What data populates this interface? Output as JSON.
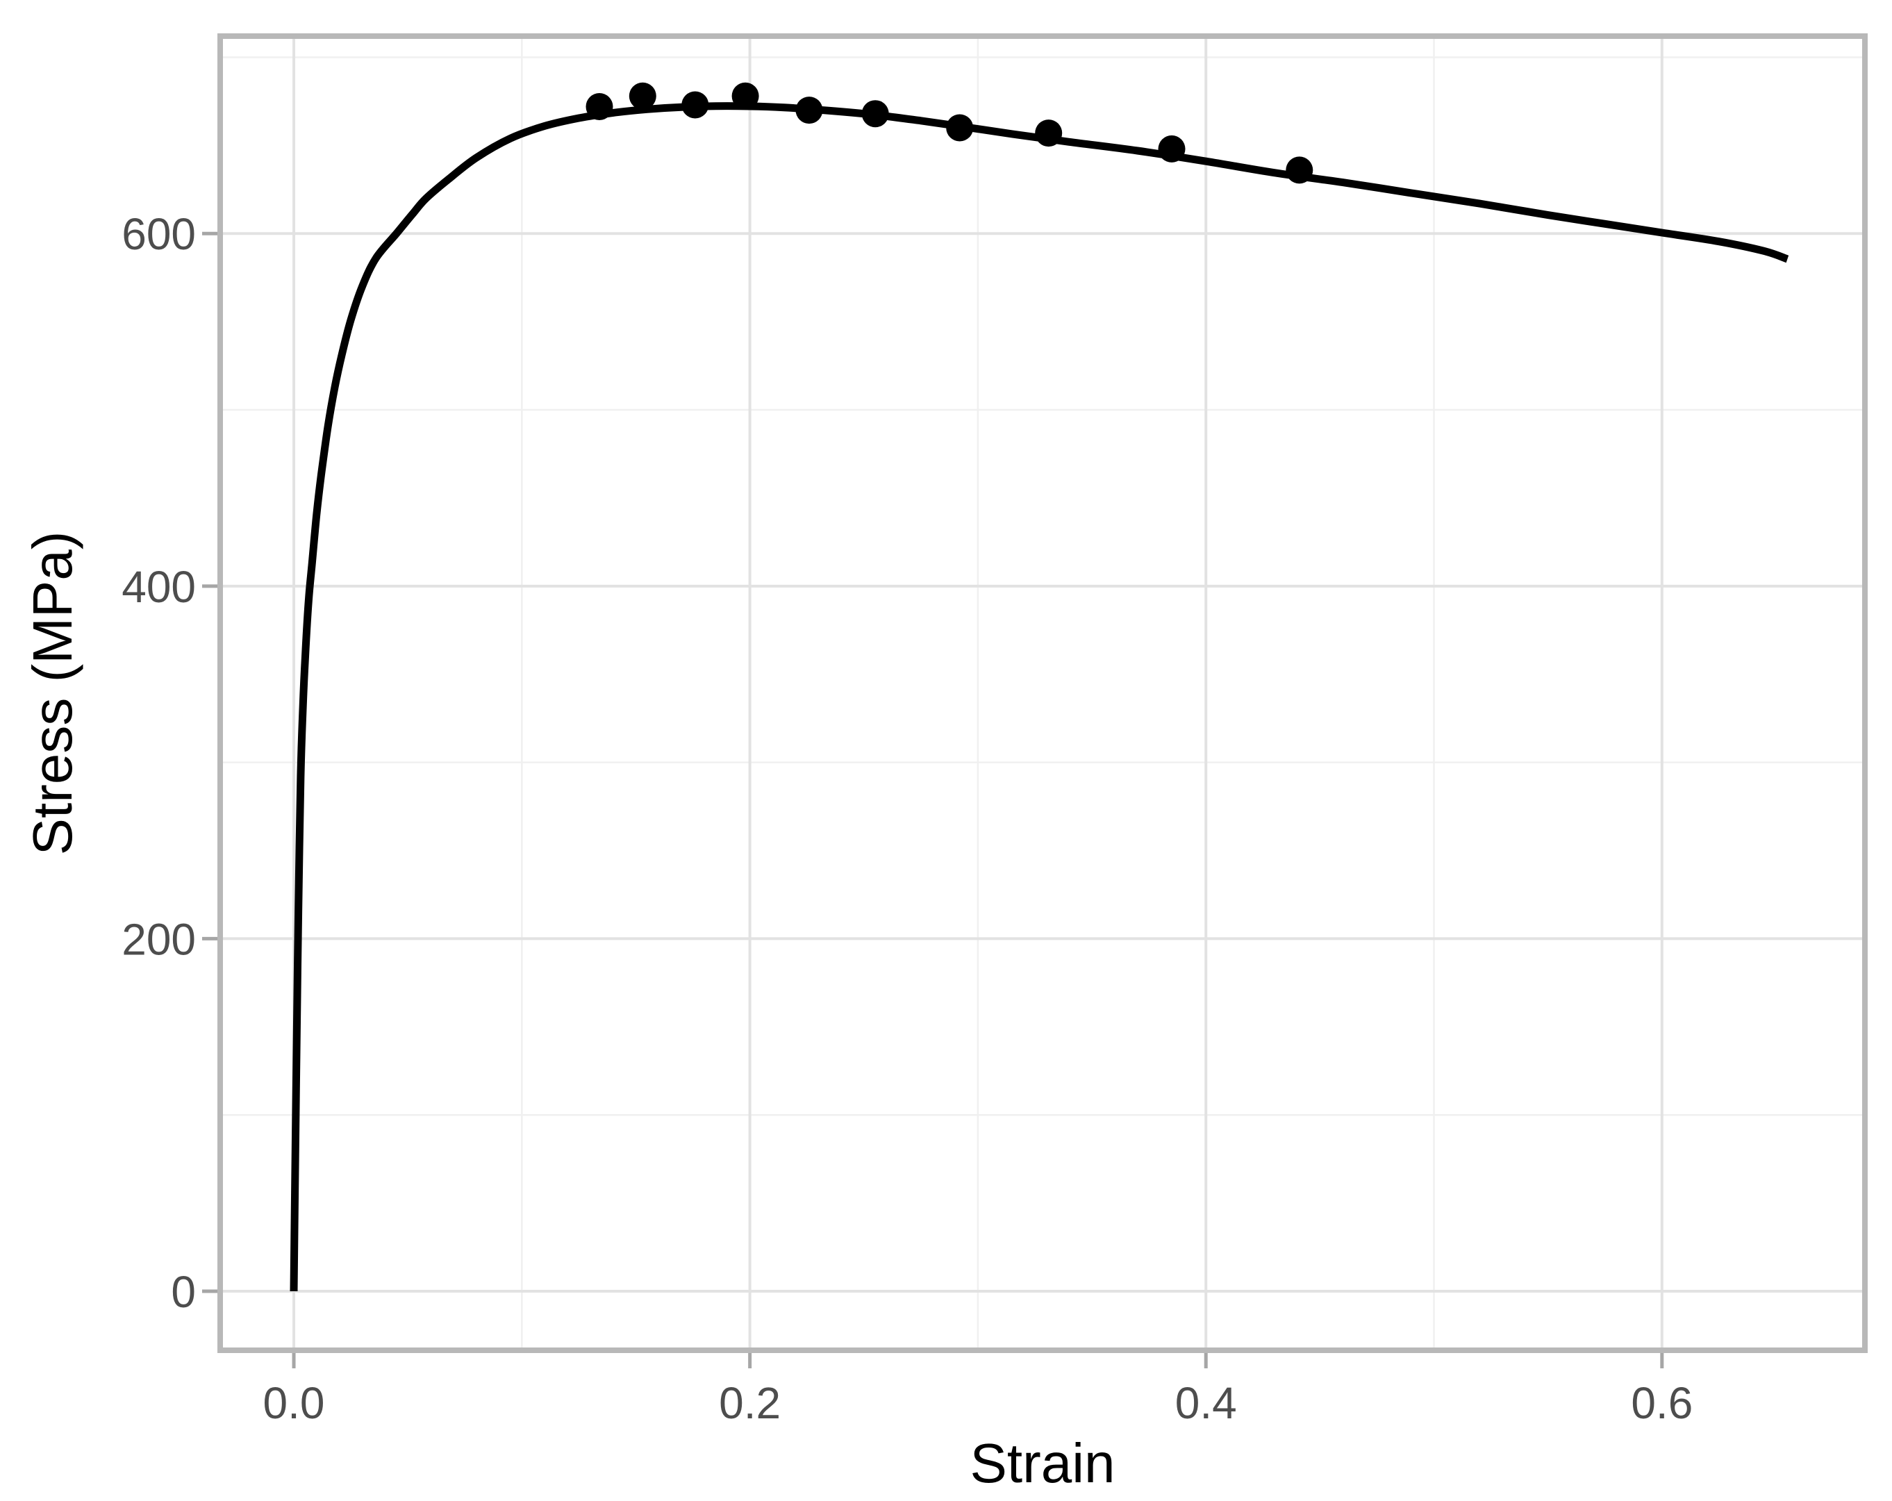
{
  "chart_data": {
    "type": "line",
    "title": "",
    "xlabel": "Strain",
    "ylabel": "Stress (MPa)",
    "xlim": [
      -0.0323,
      0.689
    ],
    "ylim": [
      -33.5,
      712
    ],
    "grid": "on",
    "legend": "none",
    "x_axis": {
      "major_ticks": [
        0.0,
        0.2,
        0.4,
        0.6
      ],
      "tick_labels": [
        "0.0",
        "0.2",
        "0.4",
        "0.6"
      ],
      "minor_gridlines": [
        0.1,
        0.3,
        0.5
      ]
    },
    "y_axis": {
      "major_ticks": [
        0,
        200,
        400,
        600
      ],
      "tick_labels": [
        "0",
        "200",
        "400",
        "600"
      ],
      "minor_gridlines": [
        100,
        300,
        500,
        700
      ]
    },
    "series": [
      {
        "name": "fitted_stress_strain_curve",
        "type": "line",
        "color": "#000000",
        "stroke_width": 11,
        "points": [
          [
            0,
            0
          ],
          [
            0.0005,
            60
          ],
          [
            0.001,
            115
          ],
          [
            0.0015,
            168
          ],
          [
            0.002,
            215
          ],
          [
            0.003,
            292
          ],
          [
            0.004,
            332
          ],
          [
            0.005,
            360
          ],
          [
            0.0065,
            392
          ],
          [
            0.008,
            413
          ],
          [
            0.01,
            441
          ],
          [
            0.012,
            463
          ],
          [
            0.015,
            491
          ],
          [
            0.018,
            513
          ],
          [
            0.021,
            531
          ],
          [
            0.025,
            551
          ],
          [
            0.03,
            570
          ],
          [
            0.036,
            586
          ],
          [
            0.045,
            600
          ],
          [
            0.052,
            611
          ],
          [
            0.058,
            620
          ],
          [
            0.068,
            631
          ],
          [
            0.08,
            643
          ],
          [
            0.095,
            654
          ],
          [
            0.11,
            661
          ],
          [
            0.125,
            665.5
          ],
          [
            0.14,
            668.5
          ],
          [
            0.155,
            670.5
          ],
          [
            0.17,
            671.7
          ],
          [
            0.185,
            672.3
          ],
          [
            0.2,
            672.2
          ],
          [
            0.215,
            671.5
          ],
          [
            0.235,
            669.7
          ],
          [
            0.255,
            667.3
          ],
          [
            0.275,
            664
          ],
          [
            0.295,
            660.3
          ],
          [
            0.315,
            656.5
          ],
          [
            0.34,
            652
          ],
          [
            0.37,
            647
          ],
          [
            0.4,
            641
          ],
          [
            0.43,
            634.5
          ],
          [
            0.46,
            629
          ],
          [
            0.49,
            623
          ],
          [
            0.52,
            617
          ],
          [
            0.55,
            610.5
          ],
          [
            0.575,
            605.5
          ],
          [
            0.6,
            600.5
          ],
          [
            0.625,
            595.5
          ],
          [
            0.645,
            590
          ],
          [
            0.655,
            585.5
          ]
        ]
      },
      {
        "name": "measured_data_points",
        "type": "scatter",
        "color": "#000000",
        "marker": "circle",
        "marker_radius": 19.5,
        "points": [
          [
            0.134,
            672
          ],
          [
            0.153,
            678
          ],
          [
            0.176,
            673
          ],
          [
            0.198,
            678
          ],
          [
            0.226,
            670
          ],
          [
            0.255,
            668
          ],
          [
            0.292,
            660
          ],
          [
            0.331,
            657
          ],
          [
            0.385,
            648
          ],
          [
            0.441,
            636
          ]
        ]
      }
    ]
  },
  "style": {
    "background": "#FFFFFF",
    "panel_background": "#FFFFFF",
    "panel_border_color": "#B8B8B8",
    "major_grid_color": "#E2E2E2",
    "minor_grid_color": "#F0F0F0",
    "tick_color": "#A6A6A6",
    "tick_label_color": "#4D4D4D",
    "axis_title_color": "#000000",
    "line_color": "#000000",
    "point_color": "#000000"
  }
}
